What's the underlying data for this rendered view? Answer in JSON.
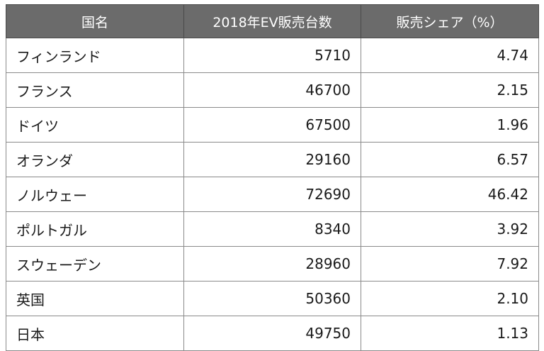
{
  "table": {
    "headers": [
      "国名",
      "2018年EV販売台数",
      "販売シェア（%）"
    ],
    "rows": [
      {
        "country": "フィンランド",
        "sales": "5710",
        "share": "4.74"
      },
      {
        "country": "フランス",
        "sales": "46700",
        "share": "2.15"
      },
      {
        "country": "ドイツ",
        "sales": "67500",
        "share": "1.96"
      },
      {
        "country": "オランダ",
        "sales": "29160",
        "share": "6.57"
      },
      {
        "country": "ノルウェー",
        "sales": "72690",
        "share": "46.42"
      },
      {
        "country": "ポルトガル",
        "sales": "8340",
        "share": "3.92"
      },
      {
        "country": "スウェーデン",
        "sales": "28960",
        "share": "7.92"
      },
      {
        "country": "英国",
        "sales": "50360",
        "share": "2.10"
      },
      {
        "country": "日本",
        "sales": "49750",
        "share": "1.13"
      }
    ]
  },
  "colors": {
    "header_bg": "#6b6b6b",
    "header_text": "#ffffff",
    "border": "#8a8a8a"
  }
}
